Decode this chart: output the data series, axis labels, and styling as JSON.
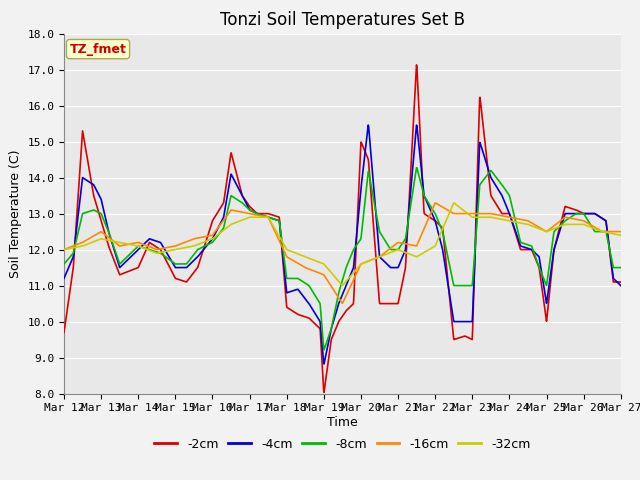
{
  "title": "Tonzi Soil Temperatures Set B",
  "xlabel": "Time",
  "ylabel": "Soil Temperature (C)",
  "ylim": [
    8.0,
    18.0
  ],
  "yticks": [
    8.0,
    9.0,
    10.0,
    11.0,
    12.0,
    13.0,
    14.0,
    15.0,
    16.0,
    17.0,
    18.0
  ],
  "xtick_labels": [
    "Mar 12",
    "Mar 13",
    "Mar 14",
    "Mar 15",
    "Mar 16",
    "Mar 17",
    "Mar 18",
    "Mar 19",
    "Mar 20",
    "Mar 21",
    "Mar 22",
    "Mar 23",
    "Mar 24",
    "Mar 25",
    "Mar 26",
    "Mar 27"
  ],
  "series": {
    "-2cm": {
      "color": "#dd0000",
      "lw": 1.2
    },
    "-4cm": {
      "color": "#0000dd",
      "lw": 1.2
    },
    "-8cm": {
      "color": "#00bb00",
      "lw": 1.2
    },
    "-16cm": {
      "color": "#ff8800",
      "lw": 1.2
    },
    "-32cm": {
      "color": "#cccc00",
      "lw": 1.2
    }
  },
  "legend_order": [
    "-2cm",
    "-4cm",
    "-8cm",
    "-16cm",
    "-32cm"
  ],
  "annotation_text": "TZ_fmet",
  "annotation_color": "#cc0000",
  "annotation_bg": "#ffffcc",
  "annotation_border": "#aaa855",
  "plot_bg": "#e8e8e8",
  "fig_bg": "#f2f2f2",
  "grid_color": "#ffffff",
  "title_fontsize": 12,
  "label_fontsize": 9,
  "tick_fontsize": 8,
  "annot_fontsize": 9,
  "legend_fontsize": 9
}
